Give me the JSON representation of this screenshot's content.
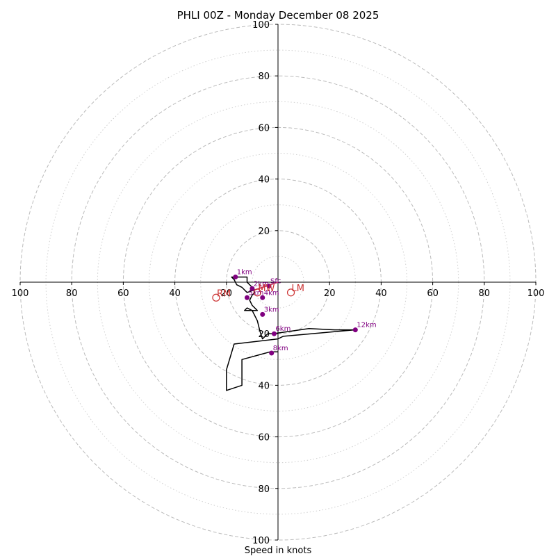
{
  "chart_data": {
    "type": "hodograph",
    "title": "PHLI 00Z - Monday December 08 2025",
    "xlabel": "Speed in knots",
    "range": [
      -100,
      100
    ],
    "tick_labels": {
      "x_left": [
        "100",
        "80",
        "60",
        "40",
        "20"
      ],
      "x_right": [
        "20",
        "40",
        "60",
        "80",
        "100"
      ],
      "y_top": [
        "100",
        "80",
        "60",
        "40",
        "20"
      ],
      "y_bottom": [
        "20",
        "40",
        "60",
        "80",
        "100"
      ]
    },
    "rings_major": [
      20,
      40,
      60,
      80,
      100
    ],
    "rings_minor": [
      10,
      30,
      50,
      70,
      90
    ],
    "colors": {
      "ring": "#bbbbbb",
      "trace": "#000000",
      "marker": "#800080",
      "storm": "#cc3333",
      "sfc_segment": "#cc3366"
    },
    "hodograph_trace": [
      {
        "u": 0,
        "v": 0
      },
      {
        "u": -3,
        "v": -1
      },
      {
        "u": -9,
        "v": -3
      },
      {
        "u": -12,
        "v": -4
      },
      {
        "u": -13,
        "v": -3
      },
      {
        "u": -14,
        "v": -2
      },
      {
        "u": -16,
        "v": -1
      },
      {
        "u": -17,
        "v": 1
      },
      {
        "u": -18,
        "v": 2
      },
      {
        "u": -15,
        "v": 2
      },
      {
        "u": -12,
        "v": 2
      },
      {
        "u": -12,
        "v": 0
      },
      {
        "u": -10,
        "v": -2
      },
      {
        "u": -9,
        "v": -4
      },
      {
        "u": -10,
        "v": -5
      },
      {
        "u": -11,
        "v": -7
      },
      {
        "u": -10,
        "v": -9
      },
      {
        "u": -8,
        "v": -11
      },
      {
        "u": -13,
        "v": -11
      },
      {
        "u": -12,
        "v": -10
      },
      {
        "u": -10,
        "v": -11
      },
      {
        "u": -8,
        "v": -15
      },
      {
        "u": -7,
        "v": -19
      },
      {
        "u": -6,
        "v": -22
      },
      {
        "u": -4,
        "v": -20
      },
      {
        "u": -2,
        "v": -20
      },
      {
        "u": 12,
        "v": -18
      },
      {
        "u": 22,
        "v": -18.5
      },
      {
        "u": 30,
        "v": -18.5
      },
      {
        "u": 2,
        "v": -21
      },
      {
        "u": 0,
        "v": -22
      },
      {
        "u": -17,
        "v": -24
      },
      {
        "u": -20,
        "v": -34
      },
      {
        "u": -20,
        "v": -42
      },
      {
        "u": -14,
        "v": -40
      },
      {
        "u": -14,
        "v": -30
      },
      {
        "u": -3,
        "v": -27
      },
      {
        "u": 0,
        "v": -27
      }
    ],
    "height_markers": [
      {
        "label": "Sfc",
        "u": -3.5,
        "v": -1.5
      },
      {
        "label": "1km",
        "u": -16.5,
        "v": 2
      },
      {
        "label": "2km",
        "u": -10,
        "v": -2.5
      },
      {
        "label": "3km",
        "u": -6,
        "v": -12.5
      },
      {
        "label": "4km",
        "u": -6,
        "v": -6
      },
      {
        "label": "5km",
        "u": -12,
        "v": -6
      },
      {
        "label": "6km",
        "u": -1.5,
        "v": -20
      },
      {
        "label": "8km",
        "u": -2.5,
        "v": -27.5
      },
      {
        "label": "12km",
        "u": 30,
        "v": -18.5
      }
    ],
    "storm_motion": [
      {
        "label": "LM",
        "u": 5,
        "v": -4
      },
      {
        "label": "RM",
        "u": -24,
        "v": -6
      },
      {
        "label": "MW",
        "u": -8,
        "v": -4
      }
    ]
  }
}
